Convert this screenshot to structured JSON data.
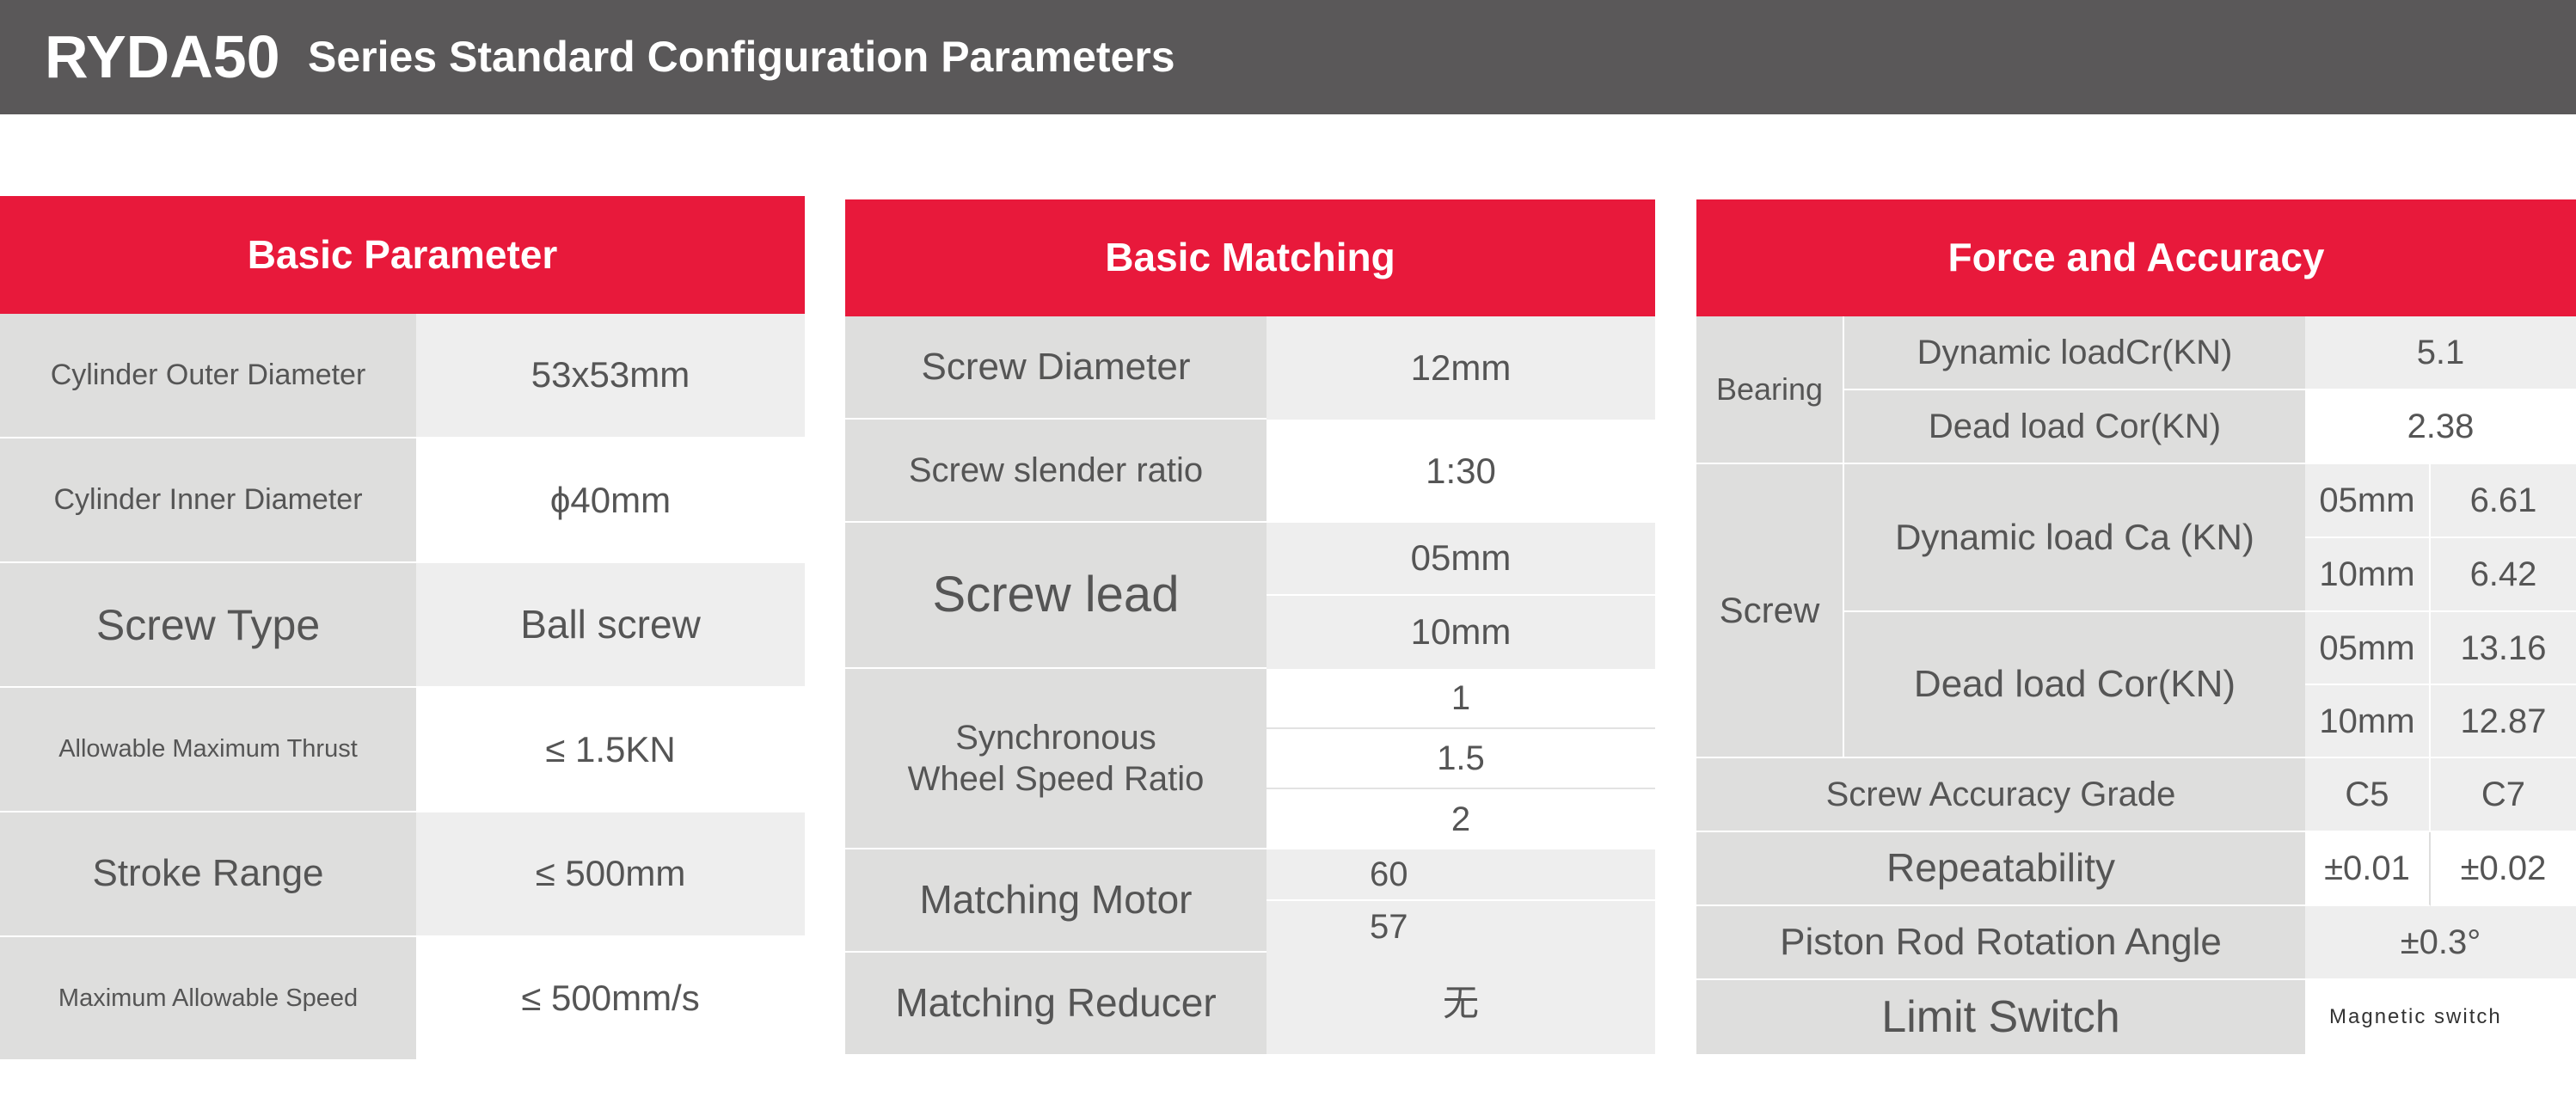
{
  "banner": {
    "model": "RYDA50",
    "title": "Series Standard Configuration Parameters"
  },
  "colors": {
    "banner_bg": "#5a5859",
    "header_red": "#e8193b",
    "label_bg": "#dededd",
    "value_gray": "#eeeeee",
    "text": "#555555"
  },
  "basic_parameter": {
    "header": "Basic Parameter",
    "rows": [
      {
        "label": "Cylinder Outer Diameter",
        "value": "53x53mm"
      },
      {
        "label": "Cylinder Inner Diameter",
        "value": "ϕ40mm"
      },
      {
        "label": "Screw Type",
        "value": "Ball screw"
      },
      {
        "label": "Allowable Maximum Thrust",
        "value": "≤ 1.5KN"
      },
      {
        "label": "Stroke Range",
        "value": "≤ 500mm"
      },
      {
        "label": "Maximum Allowable Speed",
        "value": "≤ 500mm/s"
      }
    ]
  },
  "basic_matching": {
    "header": "Basic Matching",
    "screw_diameter": {
      "label": "Screw Diameter",
      "value": "12mm"
    },
    "slender_ratio": {
      "label": "Screw slender ratio",
      "value": "1:30"
    },
    "screw_lead": {
      "label": "Screw lead",
      "values": [
        "05mm",
        "10mm"
      ]
    },
    "wheel_ratio": {
      "label": "Synchronous Wheel Speed Ratio",
      "values": [
        "1",
        "1.5",
        "2"
      ]
    },
    "motor": {
      "label": "Matching Motor",
      "values": [
        "60",
        "57"
      ]
    },
    "reducer": {
      "label": "Matching Reducer",
      "value": "无"
    }
  },
  "force_accuracy": {
    "header": "Force and Accuracy",
    "bearing": {
      "label": "Bearing",
      "dynamic": {
        "label": "Dynamic loadCr(KN)",
        "value": "5.1"
      },
      "dead": {
        "label": "Dead load Cor(KN)",
        "value": "2.38"
      }
    },
    "screw": {
      "label": "Screw",
      "dynamic": {
        "label": "Dynamic load Ca (KN)",
        "rows": [
          [
            "05mm",
            "6.61"
          ],
          [
            "10mm",
            "6.42"
          ]
        ]
      },
      "dead": {
        "label": "Dead load Cor(KN)",
        "rows": [
          [
            "05mm",
            "13.16"
          ],
          [
            "10mm",
            "12.87"
          ]
        ]
      }
    },
    "accuracy_grade": {
      "label": "Screw Accuracy Grade",
      "values": [
        "C5",
        "C7"
      ]
    },
    "repeatability": {
      "label": "Repeatability",
      "values": [
        "±0.01",
        "±0.02"
      ]
    },
    "rotation": {
      "label": "Piston Rod Rotation Angle",
      "value": "±0.3°"
    },
    "limit_switch": {
      "label": "Limit Switch",
      "value": "Magnetic switch"
    }
  }
}
